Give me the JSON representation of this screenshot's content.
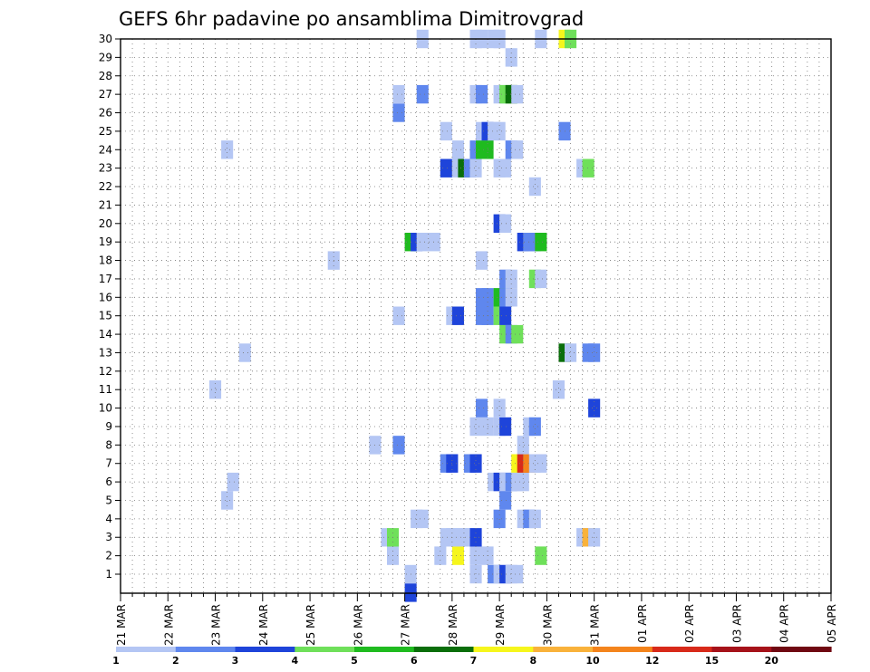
{
  "chart_data": {
    "type": "heatmap",
    "title": "GEFS 6hr padavine po ansamblima Dimitrovgrad",
    "x_tick_labels": [
      "21 MAR",
      "22 MAR",
      "23 MAR",
      "24 MAR",
      "25 MAR",
      "26 MAR",
      "27 MAR",
      "28 MAR",
      "29 MAR",
      "30 MAR",
      "31 MAR",
      "01 APR",
      "02 APR",
      "03 APR",
      "04 APR",
      "05 APR"
    ],
    "x_steps_per_label": 4,
    "y_tick_labels": [
      "1",
      "2",
      "3",
      "4",
      "5",
      "6",
      "7",
      "8",
      "9",
      "10",
      "11",
      "12",
      "13",
      "14",
      "15",
      "16",
      "17",
      "18",
      "19",
      "20",
      "21",
      "22",
      "23",
      "24",
      "25",
      "26",
      "27",
      "28",
      "29",
      "30"
    ],
    "grid": true,
    "colorbar": {
      "labels": [
        "1",
        "2",
        "3",
        "4",
        "5",
        "6",
        "7",
        "8",
        "10",
        "12",
        "15",
        "20"
      ],
      "colors": [
        "#b4c6f4",
        "#5f87ee",
        "#1e44da",
        "#6fe05a",
        "#1fbb1f",
        "#0a6e0a",
        "#f6f61c",
        "#f9b23b",
        "#f4841c",
        "#d82a1a",
        "#a6121a",
        "#700812"
      ]
    },
    "cells": [
      {
        "x": 49,
        "y": 0,
        "c": 2
      },
      {
        "x": 49,
        "y": 1,
        "c": 0
      },
      {
        "x": 60,
        "y": 1,
        "c": 0
      },
      {
        "x": 63,
        "y": 1,
        "c": 1
      },
      {
        "x": 64,
        "y": 1,
        "c": 0
      },
      {
        "x": 65,
        "y": 1,
        "c": 2
      },
      {
        "x": 66,
        "y": 1,
        "c": 0
      },
      {
        "x": 67,
        "y": 1,
        "c": 0
      },
      {
        "x": 46,
        "y": 2,
        "c": 0
      },
      {
        "x": 54,
        "y": 2,
        "c": 0
      },
      {
        "x": 57,
        "y": 2,
        "c": 6
      },
      {
        "x": 60,
        "y": 2,
        "c": 0
      },
      {
        "x": 62,
        "y": 2,
        "c": 0
      },
      {
        "x": 71,
        "y": 2,
        "c": 3
      },
      {
        "x": 45,
        "y": 3,
        "c": 0
      },
      {
        "x": 46,
        "y": 3,
        "c": 3
      },
      {
        "x": 55,
        "y": 3,
        "c": 0
      },
      {
        "x": 56,
        "y": 3,
        "c": 0
      },
      {
        "x": 57,
        "y": 3,
        "c": 0
      },
      {
        "x": 58,
        "y": 3,
        "c": 0
      },
      {
        "x": 59,
        "y": 3,
        "c": 0
      },
      {
        "x": 60,
        "y": 3,
        "c": 2
      },
      {
        "x": 78,
        "y": 3,
        "c": 0
      },
      {
        "x": 79,
        "y": 3,
        "c": 7
      },
      {
        "x": 80,
        "y": 3,
        "c": 0
      },
      {
        "x": 50,
        "y": 4,
        "c": 0
      },
      {
        "x": 51,
        "y": 4,
        "c": 0
      },
      {
        "x": 64,
        "y": 4,
        "c": 1
      },
      {
        "x": 68,
        "y": 4,
        "c": 0
      },
      {
        "x": 69,
        "y": 4,
        "c": 1
      },
      {
        "x": 70,
        "y": 4,
        "c": 0
      },
      {
        "x": 18,
        "y": 5,
        "c": 0
      },
      {
        "x": 65,
        "y": 5,
        "c": 1
      },
      {
        "x": 19,
        "y": 6,
        "c": 0
      },
      {
        "x": 63,
        "y": 6,
        "c": 0
      },
      {
        "x": 64,
        "y": 6,
        "c": 2
      },
      {
        "x": 65,
        "y": 6,
        "c": 0
      },
      {
        "x": 66,
        "y": 6,
        "c": 1
      },
      {
        "x": 67,
        "y": 6,
        "c": 0
      },
      {
        "x": 68,
        "y": 6,
        "c": 0
      },
      {
        "x": 55,
        "y": 7,
        "c": 1
      },
      {
        "x": 56,
        "y": 7,
        "c": 2
      },
      {
        "x": 59,
        "y": 7,
        "c": 1
      },
      {
        "x": 60,
        "y": 7,
        "c": 2
      },
      {
        "x": 67,
        "y": 7,
        "c": 6
      },
      {
        "x": 68,
        "y": 7,
        "c": 9
      },
      {
        "x": 69,
        "y": 7,
        "c": 8
      },
      {
        "x": 70,
        "y": 7,
        "c": 0
      },
      {
        "x": 71,
        "y": 7,
        "c": 0
      },
      {
        "x": 43,
        "y": 8,
        "c": 0
      },
      {
        "x": 47,
        "y": 8,
        "c": 1
      },
      {
        "x": 68,
        "y": 8,
        "c": 0
      },
      {
        "x": 60,
        "y": 9,
        "c": 0
      },
      {
        "x": 62,
        "y": 9,
        "c": 0
      },
      {
        "x": 64,
        "y": 9,
        "c": 0
      },
      {
        "x": 65,
        "y": 9,
        "c": 2
      },
      {
        "x": 69,
        "y": 9,
        "c": 0
      },
      {
        "x": 70,
        "y": 9,
        "c": 1
      },
      {
        "x": 61,
        "y": 10,
        "c": 1
      },
      {
        "x": 64,
        "y": 10,
        "c": 0
      },
      {
        "x": 80,
        "y": 10,
        "c": 2
      },
      {
        "x": 16,
        "y": 11,
        "c": 0
      },
      {
        "x": 74,
        "y": 11,
        "c": 0
      },
      {
        "x": 21,
        "y": 13,
        "c": 0
      },
      {
        "x": 75,
        "y": 13,
        "c": 5
      },
      {
        "x": 76,
        "y": 13,
        "c": 0
      },
      {
        "x": 79,
        "y": 13,
        "c": 1
      },
      {
        "x": 80,
        "y": 13,
        "c": 1
      },
      {
        "x": 65,
        "y": 14,
        "c": 3
      },
      {
        "x": 66,
        "y": 14,
        "c": 1
      },
      {
        "x": 67,
        "y": 14,
        "c": 3
      },
      {
        "x": 47,
        "y": 15,
        "c": 0
      },
      {
        "x": 56,
        "y": 15,
        "c": 0
      },
      {
        "x": 57,
        "y": 15,
        "c": 2
      },
      {
        "x": 61,
        "y": 15,
        "c": 1
      },
      {
        "x": 62,
        "y": 15,
        "c": 1
      },
      {
        "x": 64,
        "y": 15,
        "c": 3
      },
      {
        "x": 65,
        "y": 15,
        "c": 2
      },
      {
        "x": 61,
        "y": 16,
        "c": 1
      },
      {
        "x": 62,
        "y": 16,
        "c": 1
      },
      {
        "x": 64,
        "y": 16,
        "c": 4
      },
      {
        "x": 65,
        "y": 16,
        "c": 1
      },
      {
        "x": 66,
        "y": 16,
        "c": 0
      },
      {
        "x": 65,
        "y": 17,
        "c": 1
      },
      {
        "x": 66,
        "y": 17,
        "c": 0
      },
      {
        "x": 70,
        "y": 17,
        "c": 3
      },
      {
        "x": 71,
        "y": 17,
        "c": 0
      },
      {
        "x": 36,
        "y": 18,
        "c": 0
      },
      {
        "x": 61,
        "y": 18,
        "c": 0
      },
      {
        "x": 49,
        "y": 19,
        "c": 4
      },
      {
        "x": 50,
        "y": 19,
        "c": 2
      },
      {
        "x": 51,
        "y": 19,
        "c": 0
      },
      {
        "x": 53,
        "y": 19,
        "c": 0
      },
      {
        "x": 68,
        "y": 19,
        "c": 2
      },
      {
        "x": 69,
        "y": 19,
        "c": 1
      },
      {
        "x": 70,
        "y": 19,
        "c": 1
      },
      {
        "x": 71,
        "y": 19,
        "c": 4
      },
      {
        "x": 64,
        "y": 20,
        "c": 2
      },
      {
        "x": 65,
        "y": 20,
        "c": 0
      },
      {
        "x": 70,
        "y": 22,
        "c": 0
      },
      {
        "x": 55,
        "y": 23,
        "c": 2
      },
      {
        "x": 57,
        "y": 23,
        "c": 0
      },
      {
        "x": 58,
        "y": 23,
        "c": 5
      },
      {
        "x": 59,
        "y": 23,
        "c": 1
      },
      {
        "x": 60,
        "y": 23,
        "c": 0
      },
      {
        "x": 64,
        "y": 23,
        "c": 0
      },
      {
        "x": 65,
        "y": 23,
        "c": 0
      },
      {
        "x": 78,
        "y": 23,
        "c": 0
      },
      {
        "x": 79,
        "y": 23,
        "c": 3
      },
      {
        "x": 18,
        "y": 24,
        "c": 0
      },
      {
        "x": 57,
        "y": 24,
        "c": 0
      },
      {
        "x": 60,
        "y": 24,
        "c": 1
      },
      {
        "x": 61,
        "y": 24,
        "c": 4
      },
      {
        "x": 62,
        "y": 24,
        "c": 4
      },
      {
        "x": 66,
        "y": 24,
        "c": 1
      },
      {
        "x": 67,
        "y": 24,
        "c": 0
      },
      {
        "x": 55,
        "y": 25,
        "c": 0
      },
      {
        "x": 61,
        "y": 25,
        "c": 0
      },
      {
        "x": 62,
        "y": 25,
        "c": 2
      },
      {
        "x": 63,
        "y": 25,
        "c": 0
      },
      {
        "x": 64,
        "y": 25,
        "c": 0
      },
      {
        "x": 75,
        "y": 25,
        "c": 1
      },
      {
        "x": 47,
        "y": 26,
        "c": 1
      },
      {
        "x": 47,
        "y": 27,
        "c": 0
      },
      {
        "x": 51,
        "y": 27,
        "c": 1
      },
      {
        "x": 60,
        "y": 27,
        "c": 0
      },
      {
        "x": 61,
        "y": 27,
        "c": 1
      },
      {
        "x": 64,
        "y": 27,
        "c": 0
      },
      {
        "x": 65,
        "y": 27,
        "c": 3
      },
      {
        "x": 66,
        "y": 27,
        "c": 5
      },
      {
        "x": 67,
        "y": 27,
        "c": 0
      },
      {
        "x": 66,
        "y": 29,
        "c": 0
      },
      {
        "x": 51,
        "y": 30,
        "c": 0
      },
      {
        "x": 60,
        "y": 30,
        "c": 0
      },
      {
        "x": 61,
        "y": 30,
        "c": 0
      },
      {
        "x": 63,
        "y": 30,
        "c": 0
      },
      {
        "x": 64,
        "y": 30,
        "c": 0
      },
      {
        "x": 71,
        "y": 30,
        "c": 0
      },
      {
        "x": 75,
        "y": 30,
        "c": 6
      },
      {
        "x": 76,
        "y": 30,
        "c": 3
      }
    ]
  }
}
